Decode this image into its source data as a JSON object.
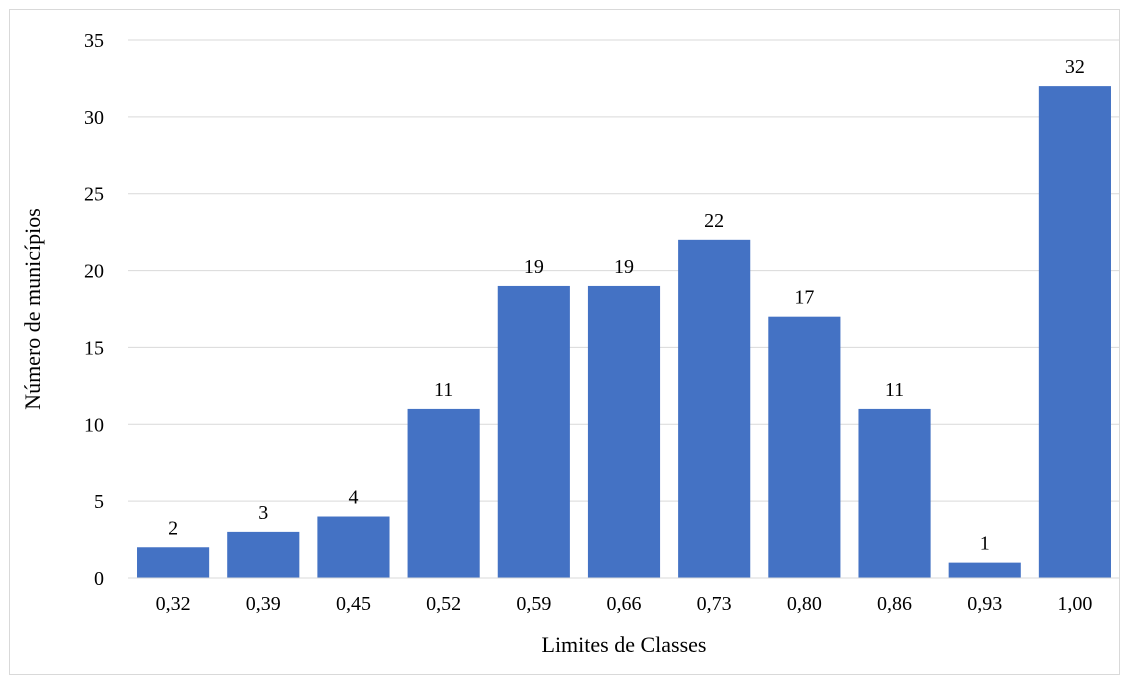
{
  "chart_data": {
    "type": "bar",
    "categories": [
      "0,32",
      "0,39",
      "0,45",
      "0,52",
      "0,59",
      "0,66",
      "0,73",
      "0,80",
      "0,86",
      "0,93",
      "1,00"
    ],
    "values": [
      2,
      3,
      4,
      11,
      19,
      19,
      22,
      17,
      11,
      1,
      32
    ],
    "xlabel": "Limites de Classes",
    "ylabel": "Número de municípios",
    "ylim": [
      0,
      35
    ],
    "yticks": [
      0,
      5,
      10,
      15,
      20,
      25,
      30,
      35
    ],
    "grid": true,
    "legend": "none",
    "bar_color": "#4472c4",
    "data_labels": true
  }
}
